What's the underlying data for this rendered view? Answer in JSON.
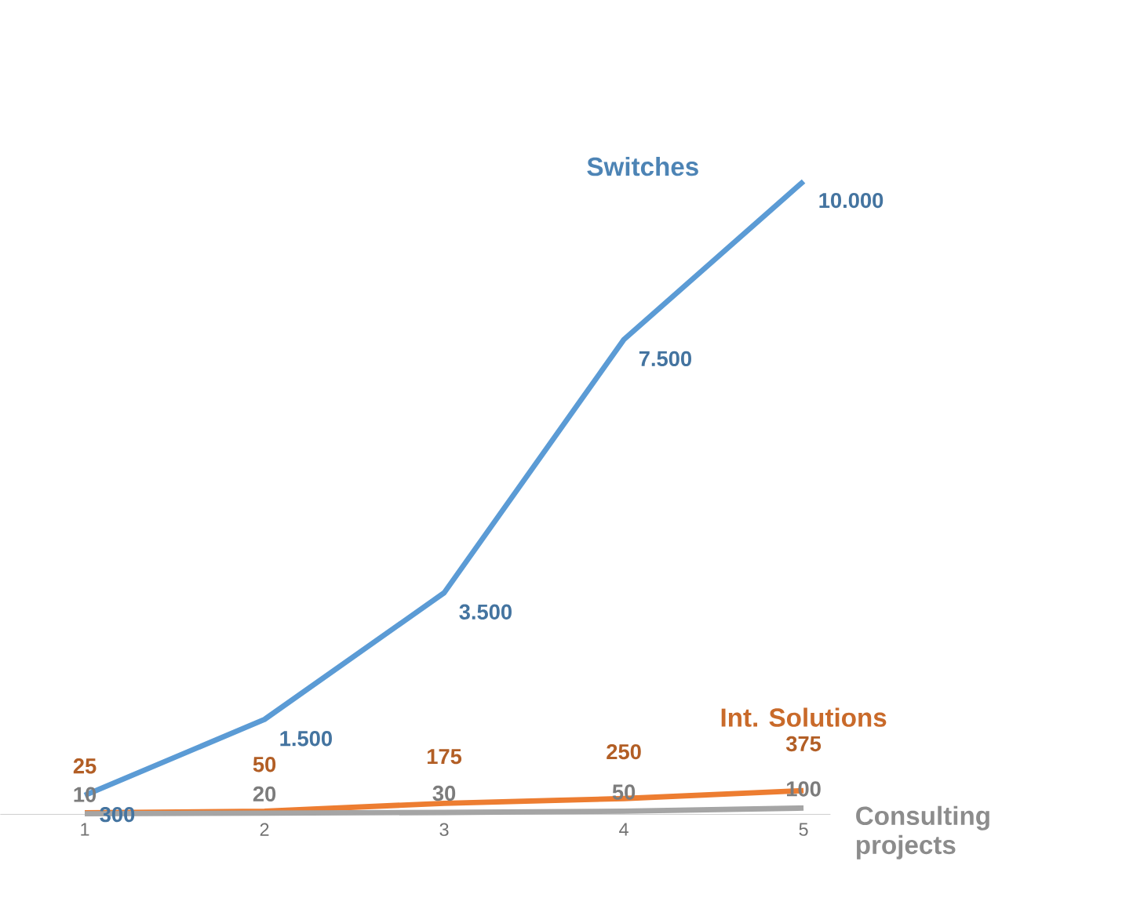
{
  "chart_data": {
    "type": "line",
    "categories": [
      "1",
      "2",
      "3",
      "4",
      "5"
    ],
    "series": [
      {
        "name": "Switches",
        "color": "#5b9bd5",
        "values": [
          300,
          1500,
          3500,
          7500,
          10000
        ],
        "value_labels": [
          "300",
          "1.500",
          "3.500",
          "7.500",
          "10.000"
        ]
      },
      {
        "name": "Int. Solutions",
        "color": "#ed7d31",
        "values": [
          25,
          50,
          175,
          250,
          375
        ],
        "value_labels": [
          "25",
          "50",
          "175",
          "250",
          "375"
        ]
      },
      {
        "name": "Consulting projects",
        "color": "#a5a5a5",
        "values": [
          10,
          20,
          30,
          50,
          100
        ],
        "value_labels": [
          "10",
          "20",
          "30",
          "50",
          "100"
        ]
      }
    ],
    "marker": "none",
    "line_style": "solid",
    "grid": false
  }
}
